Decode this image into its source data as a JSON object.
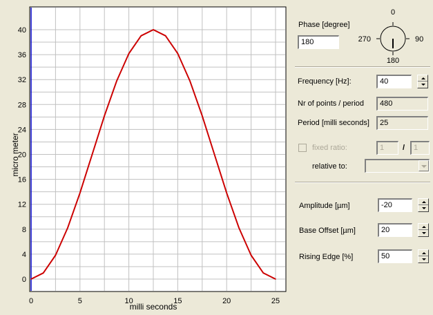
{
  "chart_data": {
    "type": "line",
    "title": "",
    "xlabel": "milli seconds",
    "ylabel": "micro meter",
    "xlim": [
      0,
      25
    ],
    "ylim": [
      0,
      40
    ],
    "x_ticks": [
      0,
      5,
      10,
      15,
      20,
      25
    ],
    "y_ticks": [
      0,
      4,
      8,
      12,
      16,
      20,
      24,
      28,
      32,
      36,
      40
    ],
    "grid": true,
    "series": [
      {
        "color": "#cc0000",
        "x": [
          0,
          1.25,
          2.5,
          3.75,
          5,
          6.25,
          7.5,
          8.75,
          10,
          11.25,
          12.5,
          13.75,
          15,
          16.25,
          17.5,
          18.75,
          20,
          21.25,
          22.5,
          23.75,
          25
        ],
        "y": [
          0,
          0.98,
          3.82,
          8.24,
          13.82,
          20,
          26.18,
          31.76,
          36.18,
          39.02,
          40,
          39.02,
          36.18,
          31.76,
          26.18,
          20,
          13.82,
          8.24,
          3.82,
          0.98,
          0
        ]
      }
    ]
  },
  "colors": {
    "window_bg": "#ece9d8",
    "plot_bg": "#ffffff",
    "grid": "#c0c0c0",
    "curve": "#cc0000",
    "y_axis_line": "#0000cc"
  },
  "phase": {
    "label": "Phase [degree]",
    "value": "180",
    "dial_labels": {
      "top": "0",
      "right": "90",
      "bottom": "180",
      "left": "270"
    },
    "dial_angle_deg": 180
  },
  "frequency": {
    "label": "Frequency [Hz]:",
    "value": "40"
  },
  "points_per_period": {
    "label": "Nr of points / period",
    "value": "480"
  },
  "period": {
    "label": "Period [milli seconds]",
    "value": "25"
  },
  "fixed_ratio": {
    "label": "fixed ratio:",
    "checked": false,
    "numerator": "1",
    "separator": "/",
    "denominator": "1",
    "relative_label": "relative to:",
    "relative_value": ""
  },
  "amplitude": {
    "label": "Amplitude [µm]",
    "value": "-20"
  },
  "base_offset": {
    "label": "Base Offset [µm]",
    "value": "20"
  },
  "rising_edge": {
    "label": "Rising Edge [%]",
    "value": "50"
  }
}
